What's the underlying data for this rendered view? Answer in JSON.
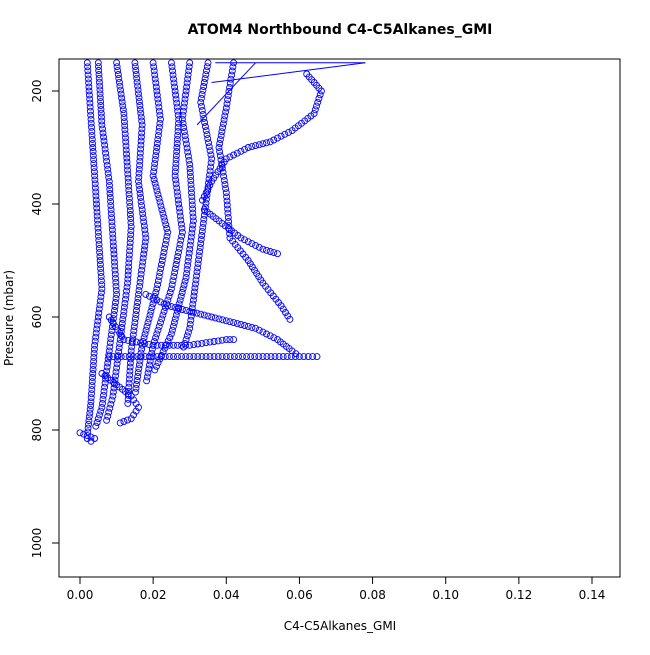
{
  "chart_data": {
    "type": "scatter",
    "title": "ATOM4 Northbound C4-C5Alkanes_GMI",
    "xlabel": "C4-C5Alkanes_GMI",
    "ylabel": "Pressure (mbar)",
    "xlim": [
      0,
      0.14
    ],
    "ylim": [
      1050,
      150
    ],
    "y_reversed": true,
    "grid": false,
    "legend": "none",
    "marker_color": "#0000ff",
    "marker": "open-circle",
    "x_ticks": [
      "0.00",
      "0.02",
      "0.04",
      "0.06",
      "0.08",
      "0.10",
      "0.12",
      "0.14"
    ],
    "y_ticks": [
      "200",
      "400",
      "600",
      "800",
      "1000"
    ],
    "profiles": [
      [
        [
          0.002,
          150
        ],
        [
          0.003,
          250
        ],
        [
          0.004,
          350
        ],
        [
          0.005,
          450
        ],
        [
          0.006,
          550
        ],
        [
          0.004,
          650
        ],
        [
          0.003,
          750
        ],
        [
          0.002,
          810
        ]
      ],
      [
        [
          0.005,
          150
        ],
        [
          0.006,
          260
        ],
        [
          0.008,
          360
        ],
        [
          0.009,
          460
        ],
        [
          0.01,
          560
        ],
        [
          0.008,
          660
        ],
        [
          0.006,
          760
        ],
        [
          0.004,
          800
        ]
      ],
      [
        [
          0.01,
          150
        ],
        [
          0.012,
          240
        ],
        [
          0.013,
          340
        ],
        [
          0.014,
          440
        ],
        [
          0.013,
          540
        ],
        [
          0.011,
          640
        ],
        [
          0.009,
          740
        ],
        [
          0.007,
          790
        ]
      ],
      [
        [
          0.015,
          150
        ],
        [
          0.017,
          260
        ],
        [
          0.016,
          360
        ],
        [
          0.018,
          460
        ],
        [
          0.016,
          560
        ],
        [
          0.014,
          660
        ],
        [
          0.013,
          760
        ]
      ],
      [
        [
          0.02,
          150
        ],
        [
          0.022,
          250
        ],
        [
          0.02,
          350
        ],
        [
          0.024,
          450
        ],
        [
          0.021,
          550
        ],
        [
          0.017,
          650
        ],
        [
          0.015,
          740
        ]
      ],
      [
        [
          0.025,
          150
        ],
        [
          0.027,
          250
        ],
        [
          0.026,
          350
        ],
        [
          0.028,
          450
        ],
        [
          0.025,
          550
        ],
        [
          0.02,
          650
        ],
        [
          0.018,
          720
        ]
      ],
      [
        [
          0.03,
          150
        ],
        [
          0.028,
          250
        ],
        [
          0.03,
          330
        ],
        [
          0.031,
          430
        ],
        [
          0.029,
          530
        ],
        [
          0.025,
          630
        ],
        [
          0.02,
          700
        ]
      ],
      [
        [
          0.035,
          150
        ],
        [
          0.033,
          220
        ],
        [
          0.036,
          320
        ],
        [
          0.034,
          420
        ],
        [
          0.032,
          520
        ],
        [
          0.03,
          620
        ],
        [
          0.028,
          660
        ]
      ],
      [
        [
          0.042,
          150
        ],
        [
          0.04,
          230
        ],
        [
          0.038,
          300
        ],
        [
          0.04,
          380
        ],
        [
          0.041,
          460
        ],
        [
          0.046,
          500
        ],
        [
          0.05,
          540
        ],
        [
          0.055,
          580
        ],
        [
          0.058,
          610
        ]
      ],
      [
        [
          0.062,
          170
        ],
        [
          0.066,
          200
        ],
        [
          0.064,
          240
        ],
        [
          0.058,
          270
        ],
        [
          0.052,
          290
        ],
        [
          0.046,
          300
        ],
        [
          0.04,
          320
        ],
        [
          0.036,
          360
        ],
        [
          0.033,
          400
        ]
      ],
      [
        [
          0.008,
          600
        ],
        [
          0.012,
          640
        ],
        [
          0.02,
          650
        ],
        [
          0.03,
          650
        ],
        [
          0.04,
          640
        ],
        [
          0.043,
          640
        ]
      ],
      [
        [
          0.008,
          670
        ],
        [
          0.02,
          670
        ],
        [
          0.03,
          670
        ],
        [
          0.04,
          670
        ],
        [
          0.05,
          670
        ],
        [
          0.06,
          670
        ],
        [
          0.066,
          670
        ]
      ],
      [
        [
          0.034,
          410
        ],
        [
          0.038,
          430
        ],
        [
          0.044,
          460
        ],
        [
          0.05,
          480
        ],
        [
          0.055,
          490
        ]
      ],
      [
        [
          0.018,
          560
        ],
        [
          0.024,
          580
        ],
        [
          0.03,
          590
        ],
        [
          0.036,
          600
        ],
        [
          0.042,
          610
        ],
        [
          0.048,
          620
        ],
        [
          0.054,
          640
        ],
        [
          0.058,
          660
        ],
        [
          0.06,
          670
        ]
      ],
      [
        [
          0.006,
          700
        ],
        [
          0.01,
          720
        ],
        [
          0.014,
          740
        ],
        [
          0.016,
          760
        ],
        [
          0.014,
          780
        ],
        [
          0.01,
          790
        ]
      ],
      [
        [
          0.0,
          805
        ],
        [
          0.002,
          810
        ],
        [
          0.004,
          815
        ],
        [
          0.003,
          820
        ],
        [
          0.001,
          810
        ]
      ]
    ],
    "connecting_lines": [
      [
        [
          0.037,
          150
        ],
        [
          0.078,
          150
        ]
      ],
      [
        [
          0.036,
          185
        ],
        [
          0.078,
          150
        ]
      ],
      [
        [
          0.032,
          260
        ],
        [
          0.048,
          150
        ]
      ]
    ]
  }
}
